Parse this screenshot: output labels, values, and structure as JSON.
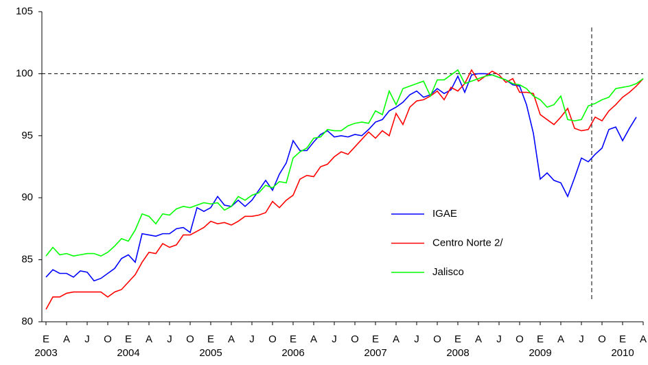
{
  "chart_data": {
    "type": "line",
    "categories": [
      "E",
      null,
      null,
      "A",
      null,
      null,
      "J",
      null,
      null,
      "O",
      null,
      null,
      "E",
      null,
      null,
      "A",
      null,
      null,
      "J",
      null,
      null,
      "O",
      null,
      null,
      "E",
      null,
      null,
      "A",
      null,
      null,
      "J",
      null,
      null,
      "O",
      null,
      null,
      "E",
      null,
      null,
      "A",
      null,
      null,
      "J",
      null,
      null,
      "O",
      null,
      null,
      "E",
      null,
      null,
      "A",
      null,
      null,
      "J",
      null,
      null,
      "O",
      null,
      null,
      "E",
      null,
      null,
      "A",
      null,
      null,
      "J",
      null,
      null,
      "O",
      null,
      null,
      "E",
      null,
      null,
      "A",
      null,
      null,
      "J",
      null,
      null,
      "O",
      null,
      null,
      "E",
      null,
      null,
      "A"
    ],
    "years": [
      "2003",
      "2004",
      "2005",
      "2006",
      "2007",
      "2008",
      "2009",
      "2010"
    ],
    "series": [
      {
        "name": "IGAE",
        "color": "#0000ff",
        "values": [
          83.6,
          84.2,
          83.9,
          83.9,
          83.6,
          84.1,
          84.0,
          83.3,
          83.5,
          83.9,
          84.3,
          85.1,
          85.4,
          84.8,
          87.1,
          87.0,
          86.9,
          87.1,
          87.1,
          87.5,
          87.6,
          87.2,
          89.2,
          88.9,
          89.2,
          90.1,
          89.4,
          89.3,
          89.8,
          89.3,
          89.8,
          90.6,
          91.4,
          90.6,
          91.9,
          92.8,
          94.6,
          93.8,
          93.8,
          94.5,
          95.1,
          95.4,
          94.9,
          95.0,
          94.9,
          95.1,
          95.0,
          95.5,
          96.1,
          96.3,
          97.0,
          97.3,
          97.7,
          98.3,
          98.6,
          98.1,
          98.3,
          98.8,
          98.4,
          98.7,
          99.8,
          98.5,
          99.9,
          100.0,
          100.0,
          99.9,
          99.7,
          99.5,
          99.1,
          99.0,
          97.5,
          95.2,
          91.5,
          92.0,
          91.4,
          91.2,
          90.1,
          91.6,
          93.2,
          92.9,
          93.5,
          94.0,
          95.5,
          95.7,
          94.6,
          95.6,
          96.5,
          null
        ]
      },
      {
        "name": "Centro Norte 2/",
        "color": "#ff0000",
        "values": [
          81.0,
          82.0,
          82.0,
          82.3,
          82.4,
          82.4,
          82.4,
          82.4,
          82.4,
          82.0,
          82.4,
          82.6,
          83.2,
          83.8,
          84.8,
          85.6,
          85.5,
          86.3,
          86.0,
          86.2,
          87.0,
          87.0,
          87.3,
          87.6,
          88.1,
          87.9,
          88.0,
          87.8,
          88.1,
          88.5,
          88.5,
          88.6,
          88.8,
          89.7,
          89.2,
          89.8,
          90.2,
          91.5,
          91.8,
          91.7,
          92.5,
          92.7,
          93.3,
          93.7,
          93.5,
          94.1,
          94.7,
          95.3,
          94.8,
          95.4,
          95.0,
          96.8,
          95.9,
          97.3,
          97.8,
          97.9,
          98.2,
          98.6,
          97.9,
          98.9,
          98.6,
          99.2,
          100.3,
          99.4,
          99.8,
          100.2,
          99.9,
          99.3,
          99.6,
          98.5,
          98.5,
          98.4,
          96.7,
          96.3,
          95.9,
          96.5,
          97.2,
          95.6,
          95.4,
          95.5,
          96.5,
          96.2,
          97.0,
          97.5,
          98.1,
          98.5,
          99.0,
          99.6
        ]
      },
      {
        "name": "Jalisco",
        "color": "#00ff00",
        "values": [
          85.3,
          86.0,
          85.4,
          85.5,
          85.3,
          85.4,
          85.5,
          85.5,
          85.3,
          85.6,
          86.1,
          86.7,
          86.5,
          87.4,
          88.7,
          88.5,
          87.9,
          88.7,
          88.6,
          89.1,
          89.3,
          89.2,
          89.4,
          89.6,
          89.5,
          89.6,
          89.0,
          89.3,
          90.1,
          89.8,
          90.2,
          90.4,
          91.0,
          90.8,
          91.3,
          91.2,
          93.2,
          93.7,
          94.0,
          94.8,
          94.9,
          95.5,
          95.4,
          95.4,
          95.8,
          96.0,
          96.1,
          96.0,
          97.0,
          96.7,
          98.6,
          97.5,
          98.8,
          99.0,
          99.2,
          99.4,
          98.2,
          99.5,
          99.5,
          99.9,
          100.3,
          99.2,
          99.4,
          99.6,
          99.8,
          99.9,
          99.7,
          99.5,
          99.2,
          99.1,
          98.8,
          98.2,
          97.9,
          97.3,
          97.5,
          98.2,
          96.3,
          96.2,
          96.3,
          97.4,
          97.6,
          97.9,
          98.1,
          98.8,
          98.9,
          99.0,
          99.2,
          99.6
        ]
      }
    ],
    "ylim": [
      80,
      105
    ],
    "yticks": [
      80,
      85,
      90,
      95,
      100,
      105
    ],
    "reference_lines": {
      "y": 100,
      "x_index": 79.5
    },
    "grid": false,
    "legend": "inside"
  }
}
